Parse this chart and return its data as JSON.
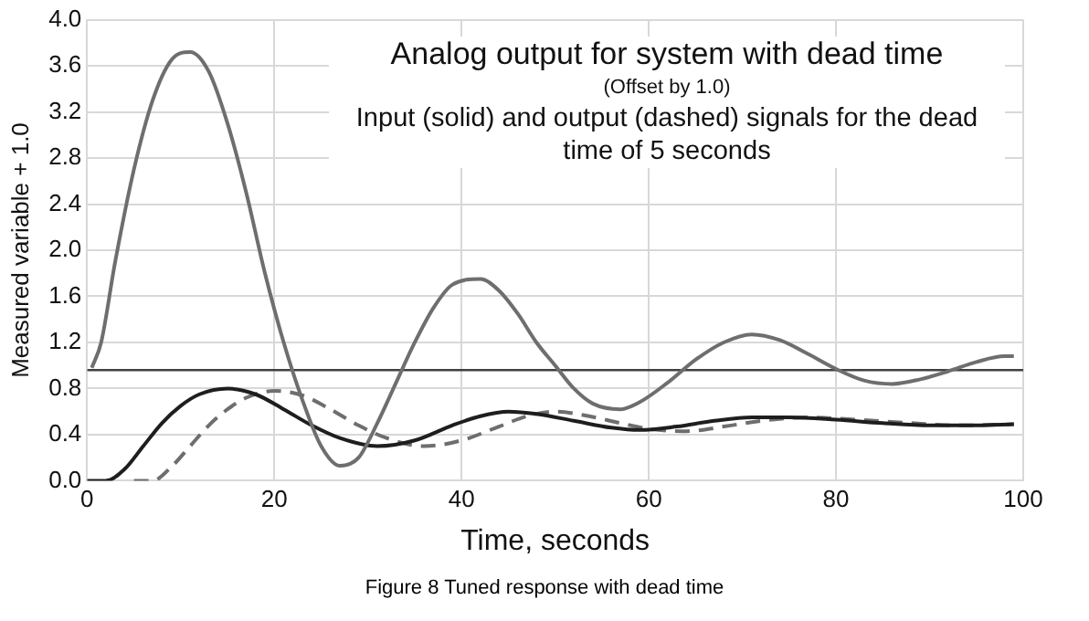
{
  "chart_data": {
    "type": "line",
    "title": "Analog output for system with dead time",
    "subtitle": "(Offset by 1.0)",
    "annotations": [
      "Input (solid) and output (dashed) signals for the dead time of 5 seconds",
      "Figure 8 Tuned response with dead time"
    ],
    "xlabel": "Time, seconds",
    "ylabel": "Measured variable + 1.0",
    "xlim": [
      0,
      100
    ],
    "xticks": [
      0,
      20,
      40,
      60,
      80,
      100
    ],
    "ylim": [
      0,
      4
    ],
    "yticks": [
      {
        "value": 0,
        "label": "0.0"
      },
      0.4,
      0.8,
      1.2,
      1.6,
      {
        "value": 2,
        "label": "2.0"
      },
      2.4,
      2.8,
      3.2,
      3.6,
      {
        "value": 4,
        "label": "4.0"
      }
    ],
    "grid": true,
    "legend": false,
    "marker": "none",
    "ref_lines": [
      {
        "axis": "y",
        "value": 0.96,
        "color": "#404040"
      }
    ],
    "series": [
      {
        "color": "#6e6e6e",
        "line_style": "solid",
        "x": [
          0.5,
          1.5,
          3,
          5,
          7,
          9,
          11,
          13,
          15,
          17,
          19,
          21,
          23,
          25,
          27,
          29,
          31,
          33,
          35,
          37,
          39,
          42,
          44,
          46,
          48,
          50,
          52,
          54,
          57,
          59,
          62,
          65,
          68,
          71,
          74,
          77,
          80,
          83,
          86,
          89,
          92,
          95,
          98,
          99
        ],
        "values": [
          0.98,
          1.2,
          1.9,
          2.7,
          3.3,
          3.65,
          3.72,
          3.55,
          3.1,
          2.5,
          1.8,
          1.2,
          0.7,
          0.3,
          0.13,
          0.2,
          0.5,
          0.85,
          1.2,
          1.5,
          1.7,
          1.75,
          1.65,
          1.45,
          1.2,
          1.0,
          0.8,
          0.67,
          0.62,
          0.68,
          0.85,
          1.05,
          1.2,
          1.27,
          1.22,
          1.1,
          0.97,
          0.87,
          0.84,
          0.88,
          0.95,
          1.03,
          1.08,
          1.08
        ]
      },
      {
        "color": "#1e1e1e",
        "line_style": "solid",
        "x": [
          0,
          2,
          4,
          6,
          8,
          10,
          12,
          15,
          18,
          21,
          24,
          27,
          31,
          35,
          39,
          42,
          45,
          48,
          52,
          56,
          59,
          63,
          67,
          71,
          75,
          80,
          85,
          90,
          95,
          99
        ],
        "values": [
          0,
          0,
          0.1,
          0.3,
          0.5,
          0.65,
          0.75,
          0.8,
          0.75,
          0.62,
          0.48,
          0.37,
          0.3,
          0.35,
          0.48,
          0.56,
          0.6,
          0.58,
          0.52,
          0.46,
          0.44,
          0.47,
          0.52,
          0.55,
          0.55,
          0.53,
          0.5,
          0.48,
          0.48,
          0.49
        ]
      },
      {
        "color": "#6e6e6e",
        "line_style": "dashed",
        "x": [
          5,
          7,
          9,
          11,
          13,
          15,
          17,
          20,
          23,
          26,
          29,
          32,
          36,
          40,
          44,
          47,
          50,
          53,
          57,
          60,
          64,
          68,
          72,
          77,
          82,
          88,
          93,
          99
        ],
        "values": [
          0,
          0,
          0.12,
          0.3,
          0.48,
          0.62,
          0.72,
          0.78,
          0.74,
          0.62,
          0.48,
          0.37,
          0.3,
          0.35,
          0.47,
          0.56,
          0.6,
          0.57,
          0.5,
          0.45,
          0.43,
          0.47,
          0.52,
          0.55,
          0.53,
          0.5,
          0.48,
          0.49
        ]
      }
    ]
  }
}
